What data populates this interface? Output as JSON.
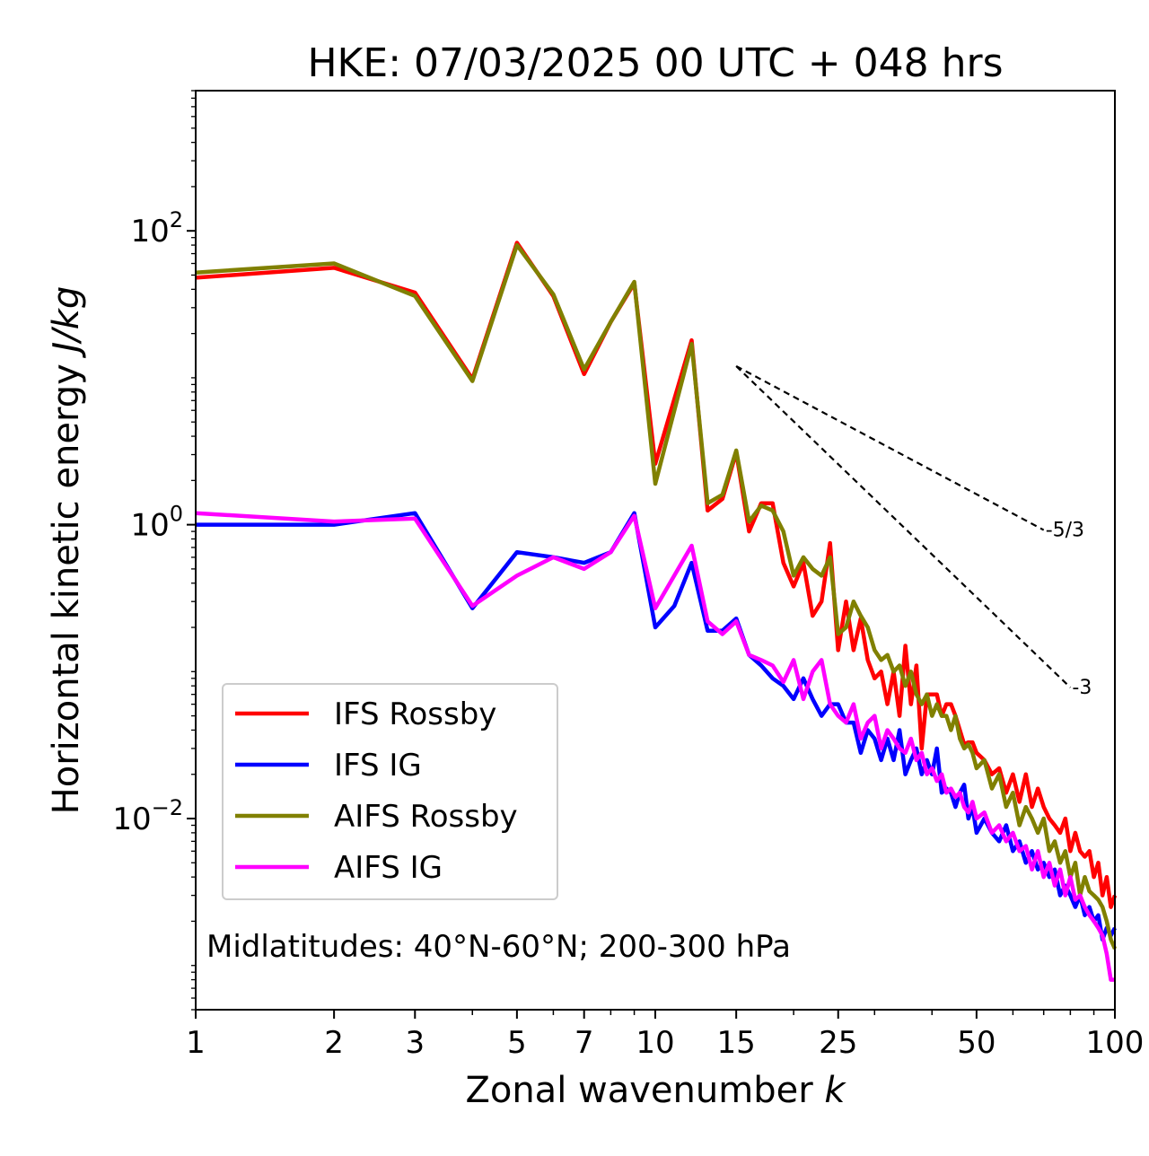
{
  "chart_data": {
    "type": "line",
    "title": "HKE: 07/03/2025 00 UTC + 048 hrs",
    "xlabel": "Zonal wavenumber",
    "xlabel_var": "k",
    "ylabel": "Horizontal kinetic energy",
    "ylabel_units": "J/kg",
    "xscale": "log",
    "yscale": "log",
    "xlim": [
      1,
      100
    ],
    "ylim": [
      0.0005,
      900
    ],
    "x_ticks": [
      {
        "value": 1,
        "label": "1"
      },
      {
        "value": 2,
        "label": "2"
      },
      {
        "value": 3,
        "label": "3"
      },
      {
        "value": 5,
        "label": "5"
      },
      {
        "value": 7,
        "label": "7"
      },
      {
        "value": 10,
        "label": "10"
      },
      {
        "value": 15,
        "label": "15"
      },
      {
        "value": 25,
        "label": "25"
      },
      {
        "value": 50,
        "label": "50"
      },
      {
        "value": 100,
        "label": "100"
      }
    ],
    "y_ticks": [
      {
        "value": 100,
        "base": "10",
        "exp": "2"
      },
      {
        "value": 1,
        "base": "10",
        "exp": "0"
      },
      {
        "value": 0.01,
        "base": "10",
        "exp": "−2"
      }
    ],
    "grid": false,
    "legend_position": "lower-left",
    "annotation": "Midlatitudes: 40°N-60°N; 200-300 hPa",
    "series": [
      {
        "name": "IFS Rossby",
        "color": "#ff0000",
        "x": [
          1,
          2,
          3,
          4,
          5,
          6,
          7,
          8,
          9,
          10,
          12,
          13,
          14,
          15,
          16,
          17,
          18,
          19,
          20,
          21,
          22,
          23,
          24,
          25,
          26,
          27,
          28,
          29,
          30,
          31,
          32,
          33,
          34,
          35,
          36,
          37,
          38,
          39,
          40,
          41,
          42,
          43,
          44,
          45,
          46,
          47,
          48,
          49,
          50,
          52,
          54,
          56,
          58,
          60,
          62,
          64,
          66,
          68,
          70,
          72,
          74,
          76,
          78,
          80,
          82,
          84,
          86,
          88,
          90,
          92,
          94,
          96,
          98,
          100
        ],
        "values": [
          48,
          56,
          38,
          9.8,
          83,
          36,
          10.6,
          24,
          44,
          2.6,
          18,
          1.25,
          1.5,
          3.1,
          0.9,
          1.4,
          1.4,
          0.55,
          0.38,
          0.55,
          0.24,
          0.3,
          0.75,
          0.14,
          0.3,
          0.14,
          0.23,
          0.12,
          0.09,
          0.1,
          0.06,
          0.1,
          0.05,
          0.15,
          0.06,
          0.11,
          0.03,
          0.07,
          0.07,
          0.07,
          0.05,
          0.06,
          0.06,
          0.05,
          0.04,
          0.032,
          0.033,
          0.033,
          0.028,
          0.025,
          0.02,
          0.022,
          0.015,
          0.02,
          0.013,
          0.02,
          0.012,
          0.016,
          0.012,
          0.01,
          0.009,
          0.008,
          0.01,
          0.006,
          0.008,
          0.006,
          0.0055,
          0.006,
          0.004,
          0.005,
          0.003,
          0.004,
          0.0025,
          0.003
        ]
      },
      {
        "name": "IFS IG",
        "color": "#0000ff",
        "x": [
          1,
          2,
          3,
          4,
          5,
          6,
          7,
          8,
          9,
          10,
          11,
          12,
          13,
          14,
          15,
          16,
          17,
          18,
          19,
          20,
          21,
          22,
          23,
          24,
          25,
          26,
          27,
          28,
          29,
          30,
          31,
          32,
          33,
          34,
          35,
          36,
          37,
          38,
          39,
          40,
          41,
          42,
          43,
          44,
          45,
          46,
          47,
          48,
          49,
          50,
          52,
          54,
          56,
          58,
          60,
          62,
          64,
          66,
          68,
          70,
          72,
          74,
          76,
          78,
          80,
          82,
          84,
          86,
          88,
          90,
          92,
          94,
          96,
          98,
          100
        ],
        "values": [
          1.0,
          1.0,
          1.2,
          0.27,
          0.65,
          0.6,
          0.55,
          0.65,
          1.2,
          0.2,
          0.28,
          0.55,
          0.19,
          0.19,
          0.23,
          0.13,
          0.11,
          0.09,
          0.08,
          0.065,
          0.09,
          0.065,
          0.05,
          0.06,
          0.06,
          0.045,
          0.045,
          0.028,
          0.04,
          0.035,
          0.025,
          0.035,
          0.025,
          0.04,
          0.02,
          0.025,
          0.03,
          0.02,
          0.025,
          0.02,
          0.03,
          0.015,
          0.016,
          0.015,
          0.012,
          0.015,
          0.017,
          0.01,
          0.012,
          0.008,
          0.01,
          0.008,
          0.007,
          0.009,
          0.006,
          0.007,
          0.005,
          0.006,
          0.0045,
          0.005,
          0.004,
          0.0045,
          0.003,
          0.0035,
          0.003,
          0.0025,
          0.003,
          0.0022,
          0.0025,
          0.002,
          0.0022,
          0.0015,
          0.0018,
          0.0016,
          0.0018
        ]
      },
      {
        "name": "AIFS Rossby",
        "color": "#808000",
        "x": [
          1,
          2,
          3,
          4,
          5,
          6,
          7,
          8,
          9,
          10,
          12,
          13,
          14,
          15,
          16,
          17,
          18,
          19,
          20,
          21,
          22,
          23,
          24,
          25,
          26,
          27,
          28,
          29,
          30,
          31,
          32,
          33,
          34,
          35,
          36,
          37,
          38,
          39,
          40,
          41,
          42,
          43,
          44,
          45,
          46,
          47,
          48,
          49,
          50,
          52,
          54,
          56,
          58,
          60,
          62,
          64,
          66,
          68,
          70,
          72,
          74,
          76,
          78,
          80,
          82,
          84,
          86,
          88,
          90,
          92,
          94,
          96,
          98,
          100
        ],
        "values": [
          52,
          60,
          36,
          9.5,
          80,
          37,
          11.4,
          24,
          45,
          1.9,
          17,
          1.4,
          1.6,
          3.2,
          1.05,
          1.35,
          1.25,
          0.9,
          0.45,
          0.6,
          0.5,
          0.45,
          0.6,
          0.18,
          0.2,
          0.3,
          0.24,
          0.2,
          0.14,
          0.12,
          0.13,
          0.1,
          0.11,
          0.08,
          0.1,
          0.07,
          0.06,
          0.07,
          0.05,
          0.06,
          0.05,
          0.05,
          0.04,
          0.05,
          0.035,
          0.03,
          0.032,
          0.028,
          0.022,
          0.025,
          0.016,
          0.02,
          0.012,
          0.015,
          0.009,
          0.012,
          0.01,
          0.008,
          0.01,
          0.006,
          0.007,
          0.005,
          0.006,
          0.004,
          0.005,
          0.003,
          0.004,
          0.0032,
          0.003,
          0.0028,
          0.0025,
          0.002,
          0.0015,
          0.0013
        ]
      },
      {
        "name": "AIFS IG",
        "color": "#ff00ff",
        "x": [
          1,
          2,
          3,
          4,
          5,
          6,
          7,
          8,
          9,
          10,
          12,
          13,
          14,
          15,
          16,
          17,
          18,
          19,
          20,
          21,
          22,
          23,
          24,
          25,
          26,
          27,
          28,
          29,
          30,
          31,
          32,
          33,
          34,
          35,
          36,
          37,
          38,
          39,
          40,
          41,
          42,
          43,
          44,
          45,
          46,
          47,
          48,
          49,
          50,
          52,
          54,
          56,
          58,
          60,
          62,
          64,
          66,
          68,
          70,
          72,
          74,
          76,
          78,
          80,
          82,
          84,
          86,
          88,
          90,
          92,
          94,
          96,
          98,
          100
        ],
        "values": [
          1.2,
          1.05,
          1.1,
          0.28,
          0.45,
          0.6,
          0.5,
          0.65,
          1.15,
          0.27,
          0.72,
          0.22,
          0.18,
          0.22,
          0.13,
          0.12,
          0.11,
          0.085,
          0.12,
          0.065,
          0.1,
          0.12,
          0.06,
          0.05,
          0.045,
          0.06,
          0.035,
          0.045,
          0.05,
          0.03,
          0.04,
          0.035,
          0.03,
          0.028,
          0.035,
          0.025,
          0.028,
          0.02,
          0.022,
          0.018,
          0.02,
          0.015,
          0.016,
          0.014,
          0.015,
          0.012,
          0.011,
          0.013,
          0.01,
          0.011,
          0.008,
          0.009,
          0.007,
          0.008,
          0.006,
          0.0065,
          0.0045,
          0.006,
          0.004,
          0.005,
          0.0035,
          0.0045,
          0.003,
          0.004,
          0.0028,
          0.003,
          0.0025,
          0.0022,
          0.002,
          0.0018,
          0.0016,
          0.0012,
          0.0008,
          0.0008
        ]
      }
    ],
    "reference_lines": [
      {
        "label": "-5/3",
        "slope": -1.6667,
        "x": [
          15,
          70
        ],
        "y": [
          12,
          0.92
        ],
        "color": "#000000",
        "style": "dashed"
      },
      {
        "label": "-3",
        "slope": -3,
        "x": [
          15,
          80
        ],
        "y": [
          12,
          0.078
        ],
        "color": "#000000",
        "style": "dashed"
      }
    ]
  }
}
